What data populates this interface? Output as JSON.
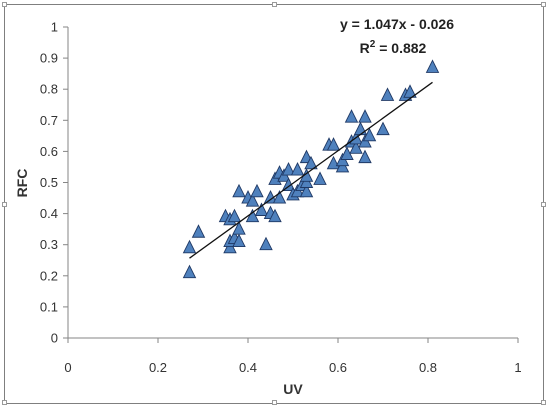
{
  "chart_data": {
    "type": "scatter",
    "xlabel": "UV",
    "ylabel": "RFC",
    "xlim": [
      0,
      1
    ],
    "ylim": [
      0,
      1
    ],
    "x_ticks": [
      "0",
      "0.2",
      "0.4",
      "0.6",
      "0.8",
      "1"
    ],
    "y_ticks": [
      "0",
      "0.1",
      "0.2",
      "0.3",
      "0.4",
      "0.5",
      "0.6",
      "0.7",
      "0.8",
      "0.9",
      "1"
    ],
    "grid": false,
    "marker": "triangle",
    "marker_color": "#4f81bd",
    "marker_edge_color": "#1f3864",
    "trendline": {
      "slope": 1.047,
      "intercept": -0.026,
      "x_range": [
        0.27,
        0.81
      ],
      "equation_label": "y = 1.047x - 0.026",
      "r2_prefix": "R",
      "r2_sup": "2",
      "r2_suffix": " = 0.882"
    },
    "points": [
      [
        0.27,
        0.21
      ],
      [
        0.27,
        0.29
      ],
      [
        0.29,
        0.34
      ],
      [
        0.35,
        0.39
      ],
      [
        0.36,
        0.29
      ],
      [
        0.36,
        0.31
      ],
      [
        0.36,
        0.38
      ],
      [
        0.37,
        0.39
      ],
      [
        0.37,
        0.32
      ],
      [
        0.38,
        0.31
      ],
      [
        0.38,
        0.35
      ],
      [
        0.38,
        0.47
      ],
      [
        0.4,
        0.45
      ],
      [
        0.41,
        0.39
      ],
      [
        0.41,
        0.44
      ],
      [
        0.42,
        0.47
      ],
      [
        0.43,
        0.41
      ],
      [
        0.44,
        0.3
      ],
      [
        0.45,
        0.45
      ],
      [
        0.45,
        0.4
      ],
      [
        0.46,
        0.39
      ],
      [
        0.46,
        0.51
      ],
      [
        0.47,
        0.45
      ],
      [
        0.47,
        0.53
      ],
      [
        0.48,
        0.52
      ],
      [
        0.49,
        0.54
      ],
      [
        0.49,
        0.49
      ],
      [
        0.5,
        0.46
      ],
      [
        0.51,
        0.47
      ],
      [
        0.51,
        0.54
      ],
      [
        0.52,
        0.49
      ],
      [
        0.53,
        0.47
      ],
      [
        0.53,
        0.5
      ],
      [
        0.53,
        0.52
      ],
      [
        0.53,
        0.58
      ],
      [
        0.54,
        0.56
      ],
      [
        0.56,
        0.51
      ],
      [
        0.58,
        0.62
      ],
      [
        0.59,
        0.62
      ],
      [
        0.59,
        0.56
      ],
      [
        0.61,
        0.55
      ],
      [
        0.61,
        0.57
      ],
      [
        0.62,
        0.59
      ],
      [
        0.63,
        0.63
      ],
      [
        0.63,
        0.71
      ],
      [
        0.64,
        0.61
      ],
      [
        0.64,
        0.64
      ],
      [
        0.65,
        0.67
      ],
      [
        0.66,
        0.71
      ],
      [
        0.66,
        0.63
      ],
      [
        0.66,
        0.58
      ],
      [
        0.67,
        0.65
      ],
      [
        0.7,
        0.67
      ],
      [
        0.71,
        0.78
      ],
      [
        0.75,
        0.78
      ],
      [
        0.76,
        0.79
      ],
      [
        0.81,
        0.87
      ]
    ]
  }
}
